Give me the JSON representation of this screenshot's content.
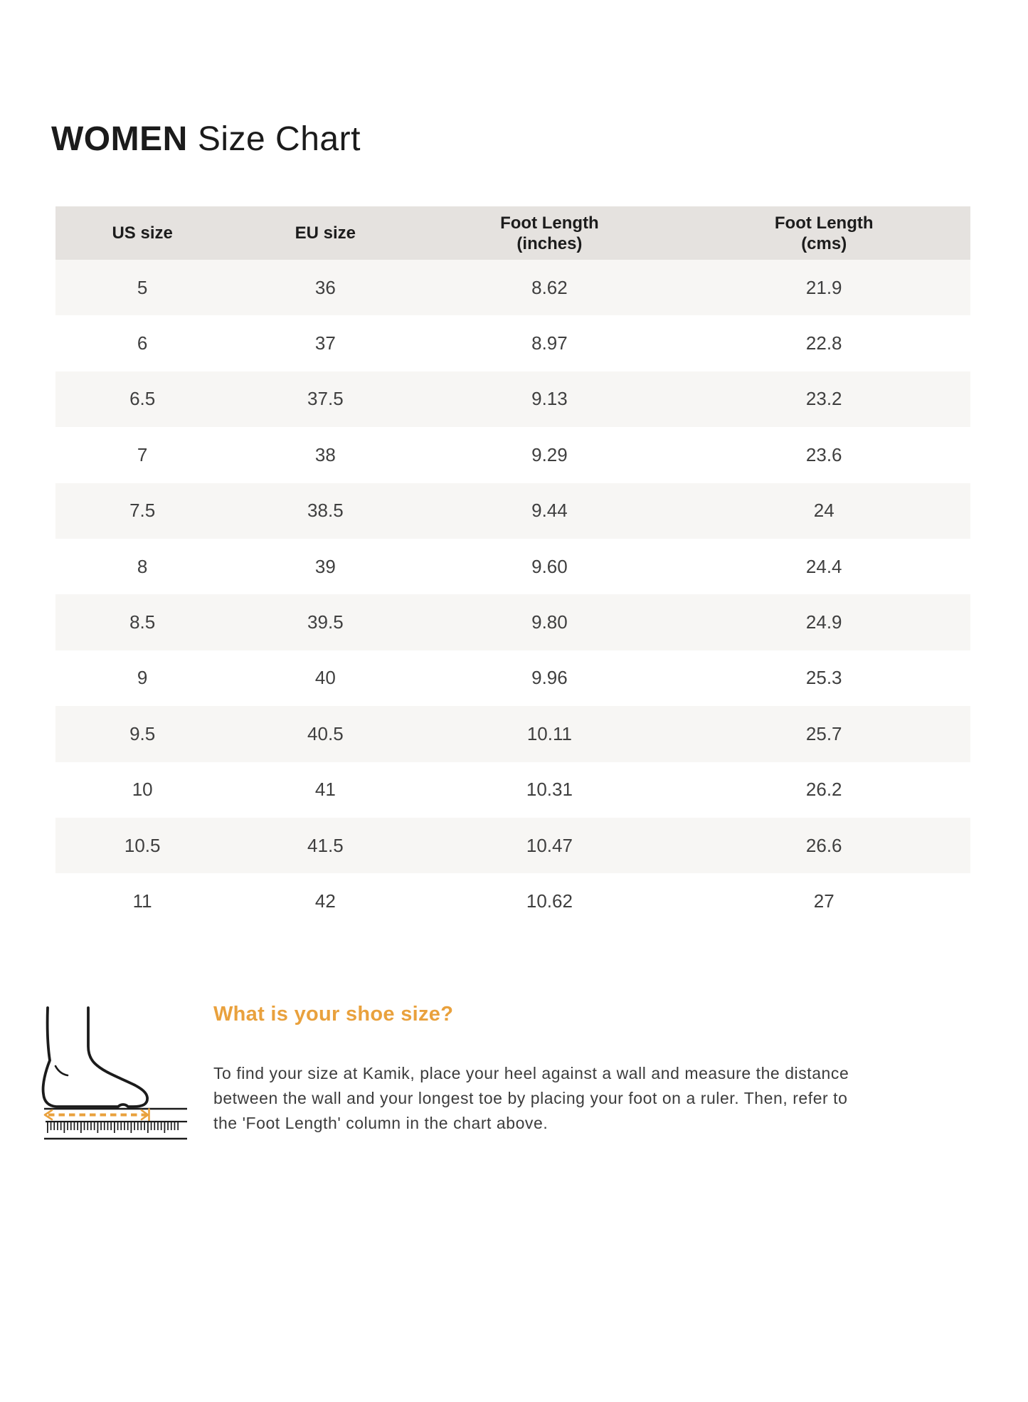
{
  "title": {
    "bold": "WOMEN",
    "regular": "Size Chart"
  },
  "table": {
    "columns": [
      "US size",
      "EU size",
      "Foot Length\n(inches)",
      "Foot Length\n(cms)"
    ],
    "rows": [
      [
        "5",
        "36",
        "8.62",
        "21.9"
      ],
      [
        "6",
        "37",
        "8.97",
        "22.8"
      ],
      [
        "6.5",
        "37.5",
        "9.13",
        "23.2"
      ],
      [
        "7",
        "38",
        "9.29",
        "23.6"
      ],
      [
        "7.5",
        "38.5",
        "9.44",
        "24"
      ],
      [
        "8",
        "39",
        "9.60",
        "24.4"
      ],
      [
        "8.5",
        "39.5",
        "9.80",
        "24.9"
      ],
      [
        "9",
        "40",
        "9.96",
        "25.3"
      ],
      [
        "9.5",
        "40.5",
        "10.11",
        "25.7"
      ],
      [
        "10",
        "41",
        "10.31",
        "26.2"
      ],
      [
        "10.5",
        "41.5",
        "10.47",
        "26.6"
      ],
      [
        "11",
        "42",
        "10.62",
        "27"
      ]
    ]
  },
  "info": {
    "heading": "What is your shoe size?",
    "lines": [
      "To find your size at Kamik, place your heel against a wall and measure the distance",
      "between the wall and your longest toe by placing your foot on a ruler. Then, refer to",
      "the 'Foot Length' column in the chart above."
    ],
    "icon": "foot-measure-icon"
  },
  "colors": {
    "accent_orange": "#E9A13D",
    "header_bg": "#E5E2DF",
    "row_alt_bg": "#F7F6F4",
    "text_dark": "#1c1c1c"
  }
}
